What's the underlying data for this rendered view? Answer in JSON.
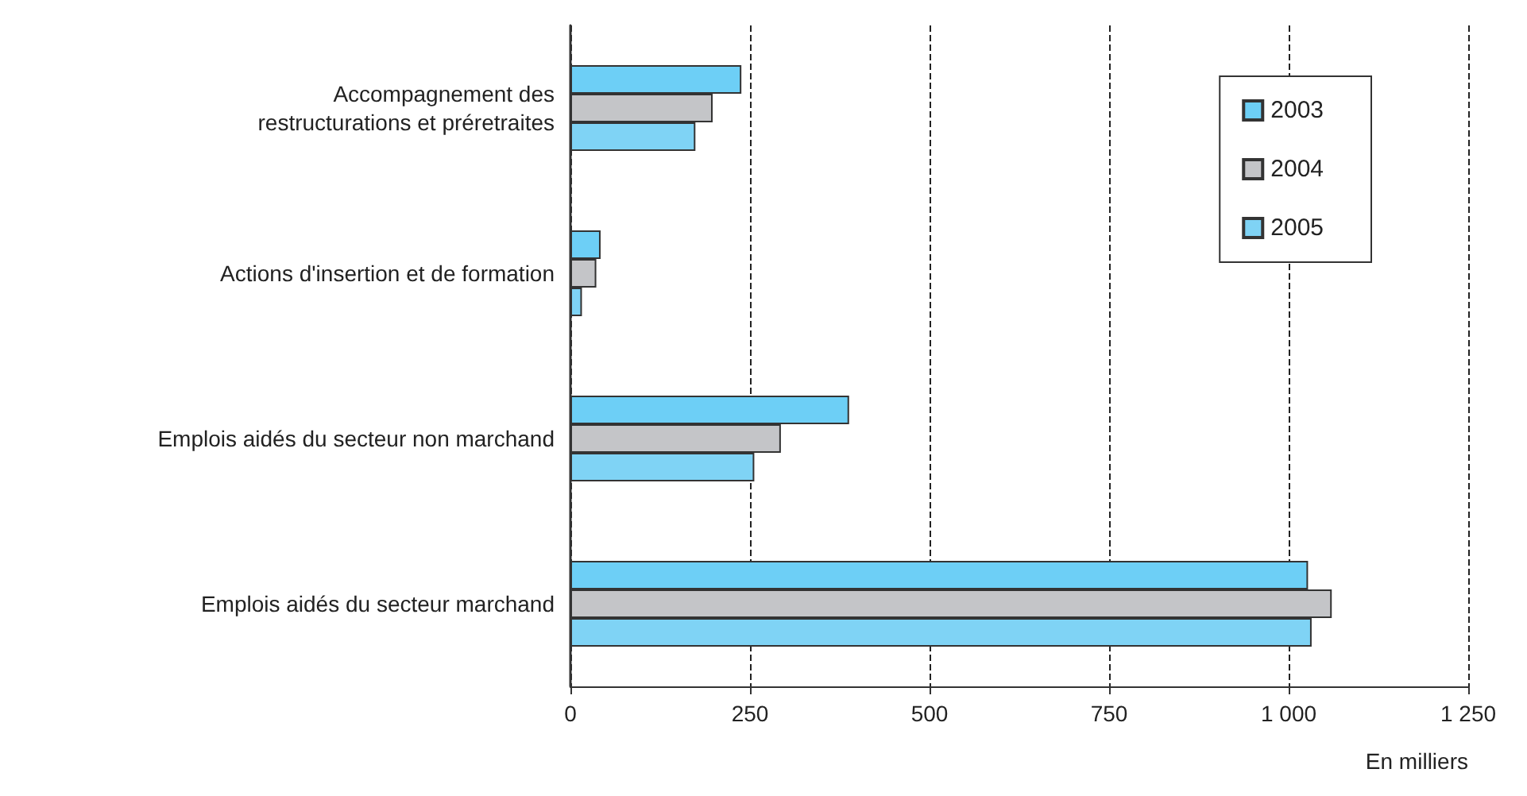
{
  "chart_data": {
    "type": "bar",
    "orientation": "horizontal",
    "xlabel": "En milliers",
    "categories": [
      "Accompagnement des\nrestructurations et préretraites",
      "Actions d'insertion et de formation",
      "Emplois aidés du secteur non marchand",
      "Emplois aidés du secteur marchand"
    ],
    "series": [
      {
        "name": "2003",
        "color": "#6dcff6",
        "values": [
          238,
          42,
          388,
          1027
        ]
      },
      {
        "name": "2004",
        "color": "#c4c5c8",
        "values": [
          198,
          36,
          293,
          1060
        ]
      },
      {
        "name": "2005",
        "color": "#7fd3f5",
        "values": [
          174,
          16,
          256,
          1032
        ]
      }
    ],
    "xlim": [
      0,
      1250
    ],
    "xticks": [
      0,
      250,
      500,
      750,
      {
        "value": 1000,
        "label": "1 000"
      },
      {
        "value": 1250,
        "label": "1 250"
      }
    ],
    "grid": "x",
    "legend": "top right"
  }
}
